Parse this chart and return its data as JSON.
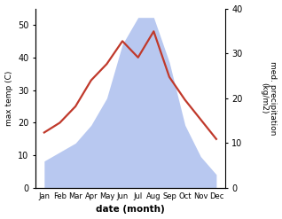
{
  "months": [
    "Jan",
    "Feb",
    "Mar",
    "Apr",
    "May",
    "Jun",
    "Jul",
    "Aug",
    "Sep",
    "Oct",
    "Nov",
    "Dec"
  ],
  "temperature": [
    17,
    20,
    25,
    33,
    38,
    45,
    40,
    48,
    34,
    27,
    21,
    15
  ],
  "precipitation": [
    6,
    8,
    10,
    14,
    20,
    32,
    38,
    38,
    28,
    14,
    7,
    3
  ],
  "temp_color": "#c0392b",
  "precip_color_fill": "#b8c8f0",
  "temp_ylim": [
    0,
    55
  ],
  "precip_ylim": [
    0,
    40
  ],
  "xlabel": "date (month)",
  "ylabel_left": "max temp (C)",
  "ylabel_right": "med. precipitation\n(kg/m2)",
  "temp_linewidth": 1.6,
  "background_color": "#ffffff"
}
